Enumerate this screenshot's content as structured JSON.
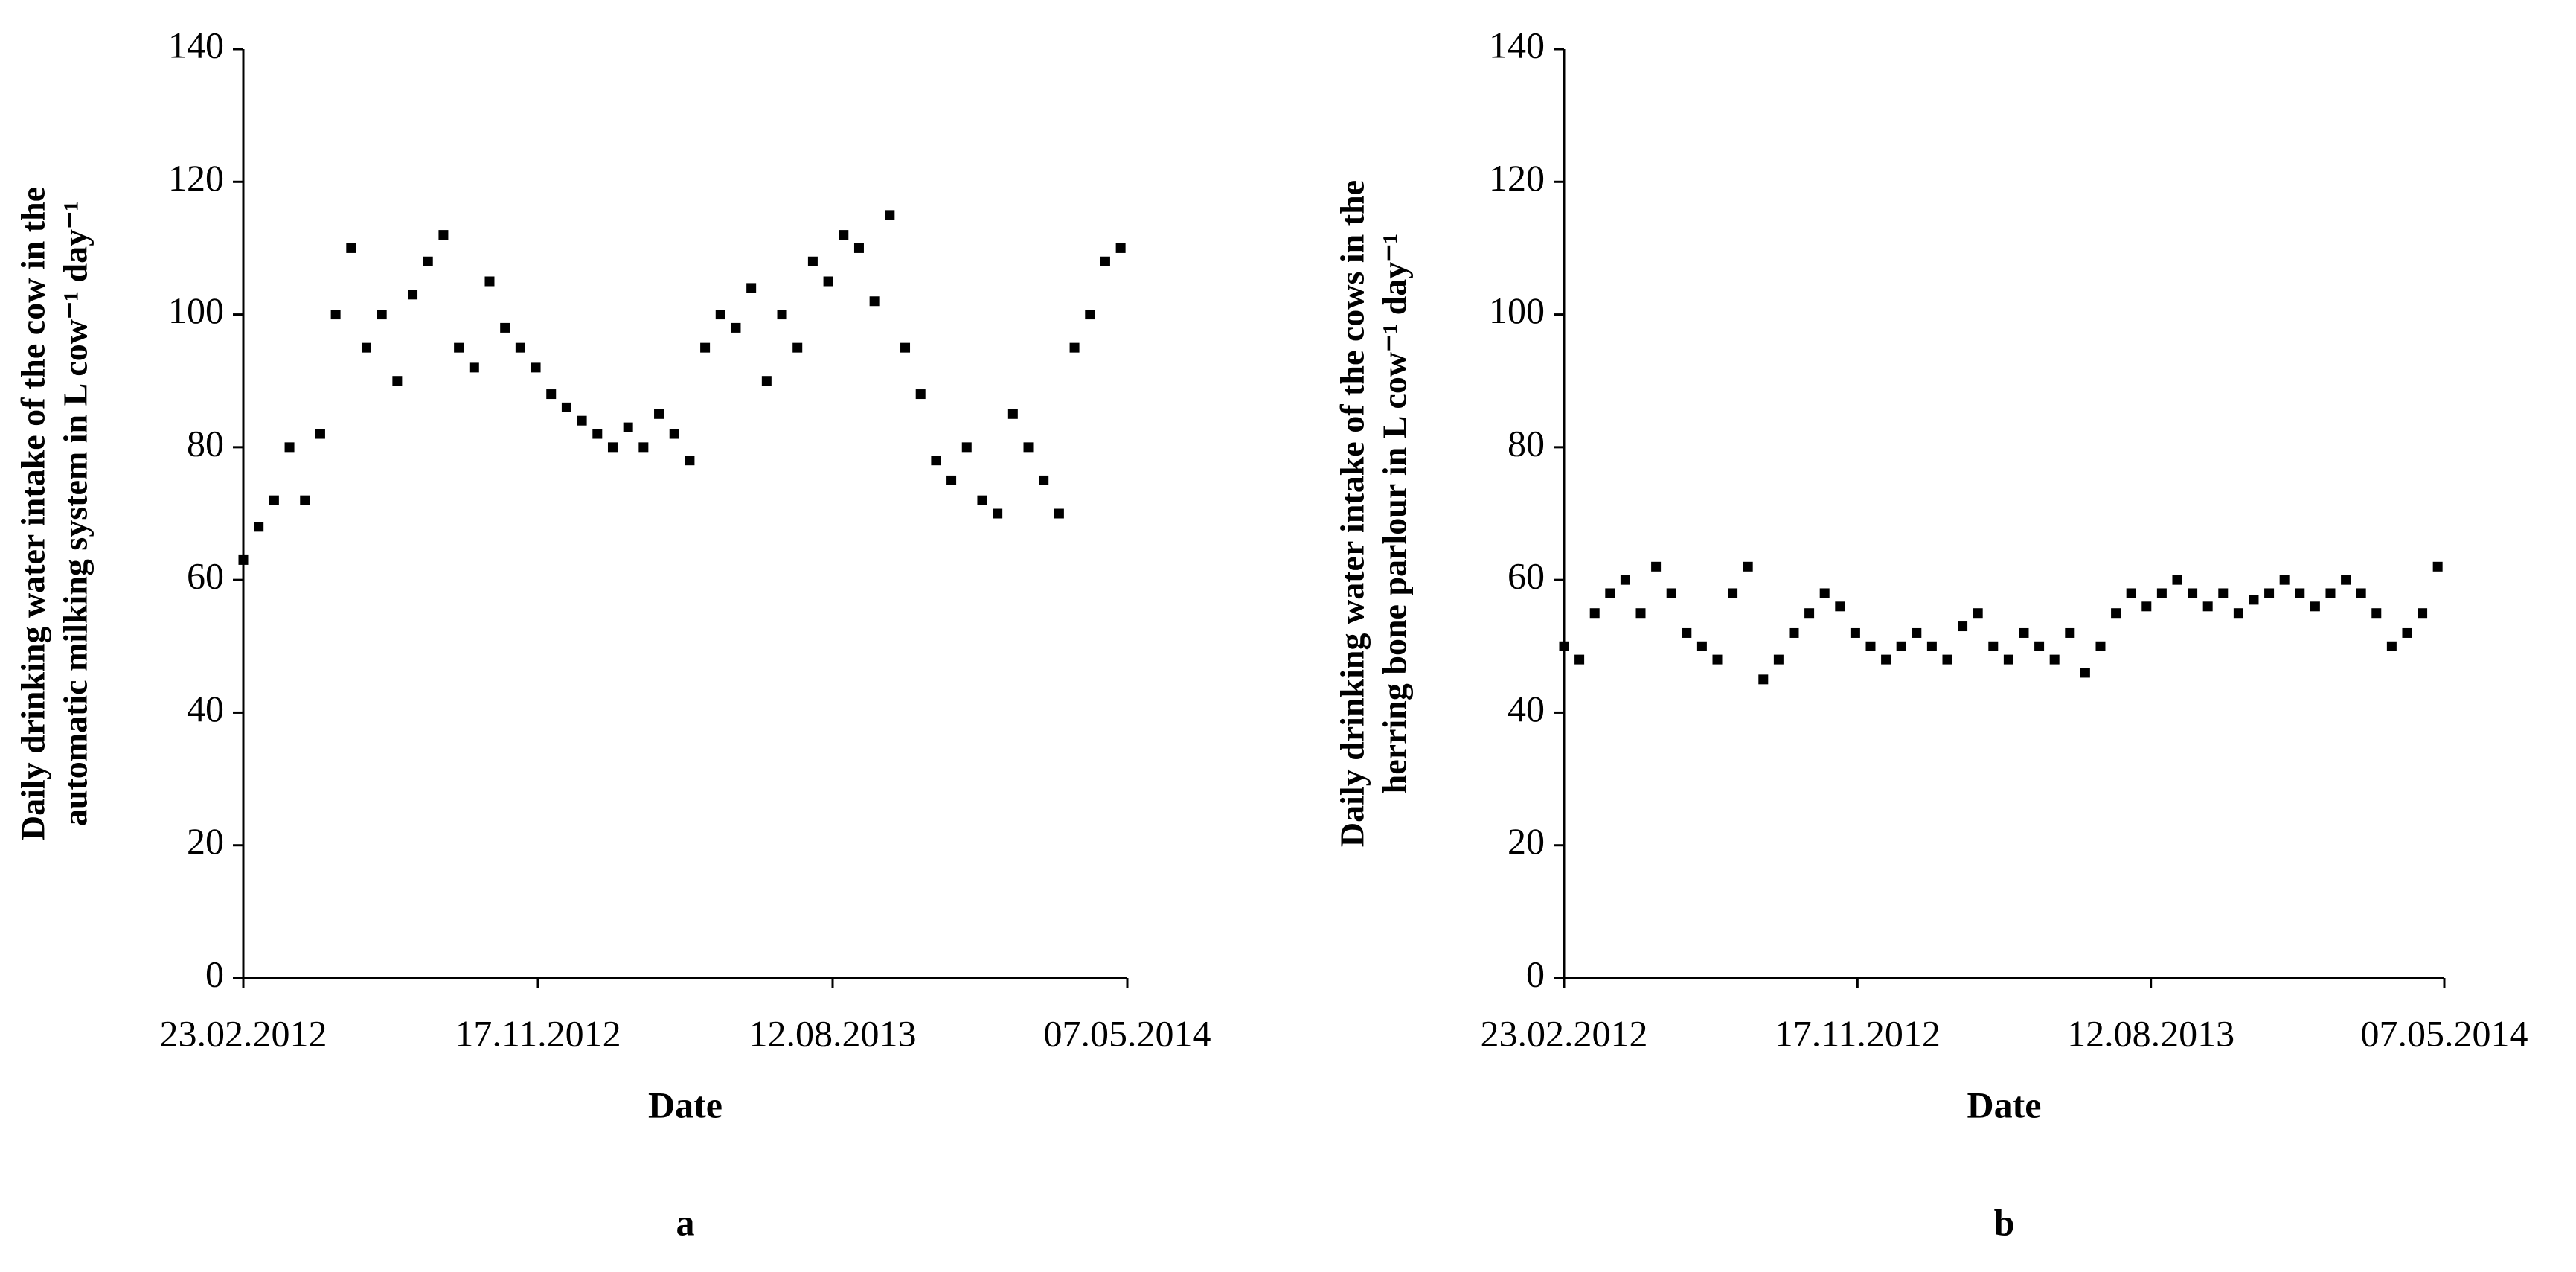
{
  "chart_data": [
    {
      "type": "scatter",
      "caption": "a",
      "xlabel": "Date",
      "ylabel": [
        "Daily drinking water intake of the cow in the",
        "automatic milking system in L cow⁻¹ day⁻¹"
      ],
      "color": "#000000",
      "x": [
        "2012-02-23",
        "2012-03-08",
        "2012-03-22",
        "2012-04-05",
        "2012-04-19",
        "2012-05-03",
        "2012-05-17",
        "2012-05-31",
        "2012-06-14",
        "2012-06-28",
        "2012-07-12",
        "2012-07-26",
        "2012-08-09",
        "2012-08-23",
        "2012-09-06",
        "2012-09-20",
        "2012-10-04",
        "2012-10-18",
        "2012-11-01",
        "2012-11-15",
        "2012-11-29",
        "2012-12-13",
        "2012-12-27",
        "2013-01-10",
        "2013-01-24",
        "2013-02-07",
        "2013-02-21",
        "2013-03-07",
        "2013-03-21",
        "2013-04-04",
        "2013-04-18",
        "2013-05-02",
        "2013-05-16",
        "2013-05-30",
        "2013-06-13",
        "2013-06-27",
        "2013-07-11",
        "2013-07-25",
        "2013-08-08",
        "2013-08-22",
        "2013-09-05",
        "2013-09-19",
        "2013-10-03",
        "2013-10-17",
        "2013-10-31",
        "2013-11-14",
        "2013-11-28",
        "2013-12-12",
        "2013-12-26",
        "2014-01-09",
        "2014-01-23",
        "2014-02-06",
        "2014-02-20",
        "2014-03-06",
        "2014-03-20",
        "2014-04-03",
        "2014-04-17",
        "2014-05-01"
      ],
      "values": [
        63,
        68,
        72,
        80,
        72,
        82,
        100,
        110,
        95,
        100,
        90,
        103,
        108,
        112,
        95,
        92,
        105,
        98,
        95,
        92,
        88,
        86,
        84,
        82,
        80,
        83,
        80,
        85,
        82,
        78,
        95,
        100,
        98,
        104,
        90,
        100,
        95,
        108,
        105,
        112,
        110,
        102,
        115,
        95,
        88,
        78,
        75,
        80,
        72,
        70,
        85,
        80,
        75,
        70,
        95,
        100,
        108,
        110
      ],
      "xlim": [
        "2012-02-23",
        "2014-05-07"
      ],
      "xticks": [
        {
          "value": "2012-02-23",
          "label": "23.02.2012"
        },
        {
          "value": "2012-11-17",
          "label": "17.11.2012"
        },
        {
          "value": "2013-08-12",
          "label": "12.08.2013"
        },
        {
          "value": "2014-05-07",
          "label": "07.05.2014"
        }
      ],
      "ylim": [
        0,
        140
      ],
      "yticks": [
        0,
        20,
        40,
        60,
        80,
        100,
        120,
        140
      ],
      "grid": false
    },
    {
      "type": "scatter",
      "caption": "b",
      "xlabel": "Date",
      "ylabel": [
        "Daily drinking water intake of the cows in the",
        "herring bone parlour in L cow⁻¹ day⁻¹"
      ],
      "color": "#000000",
      "x": [
        "2012-02-23",
        "2012-03-08",
        "2012-03-22",
        "2012-04-05",
        "2012-04-19",
        "2012-05-03",
        "2012-05-17",
        "2012-05-31",
        "2012-06-14",
        "2012-06-28",
        "2012-07-12",
        "2012-07-26",
        "2012-08-09",
        "2012-08-23",
        "2012-09-06",
        "2012-09-20",
        "2012-10-04",
        "2012-10-18",
        "2012-11-01",
        "2012-11-15",
        "2012-11-29",
        "2012-12-13",
        "2012-12-27",
        "2013-01-10",
        "2013-01-24",
        "2013-02-07",
        "2013-02-21",
        "2013-03-07",
        "2013-03-21",
        "2013-04-04",
        "2013-04-18",
        "2013-05-02",
        "2013-05-16",
        "2013-05-30",
        "2013-06-13",
        "2013-06-27",
        "2013-07-11",
        "2013-07-25",
        "2013-08-08",
        "2013-08-22",
        "2013-09-05",
        "2013-09-19",
        "2013-10-03",
        "2013-10-17",
        "2013-10-31",
        "2013-11-14",
        "2013-11-28",
        "2013-12-12",
        "2013-12-26",
        "2014-01-09",
        "2014-01-23",
        "2014-02-06",
        "2014-02-20",
        "2014-03-06",
        "2014-03-20",
        "2014-04-03",
        "2014-04-17",
        "2014-05-01"
      ],
      "values": [
        50,
        48,
        55,
        58,
        60,
        55,
        62,
        58,
        52,
        50,
        48,
        58,
        62,
        45,
        48,
        52,
        55,
        58,
        56,
        52,
        50,
        48,
        50,
        52,
        50,
        48,
        53,
        55,
        50,
        48,
        52,
        50,
        48,
        52,
        46,
        50,
        55,
        58,
        56,
        58,
        60,
        58,
        56,
        58,
        55,
        57,
        58,
        60,
        58,
        56,
        58,
        60,
        58,
        55,
        50,
        52,
        55,
        62
      ],
      "xlim": [
        "2012-02-23",
        "2014-05-07"
      ],
      "xticks": [
        {
          "value": "2012-02-23",
          "label": "23.02.2012"
        },
        {
          "value": "2012-11-17",
          "label": "17.11.2012"
        },
        {
          "value": "2013-08-12",
          "label": "12.08.2013"
        },
        {
          "value": "2014-05-07",
          "label": "07.05.2014"
        }
      ],
      "ylim": [
        0,
        140
      ],
      "yticks": [
        0,
        20,
        40,
        60,
        80,
        100,
        120,
        140
      ],
      "grid": false
    }
  ]
}
